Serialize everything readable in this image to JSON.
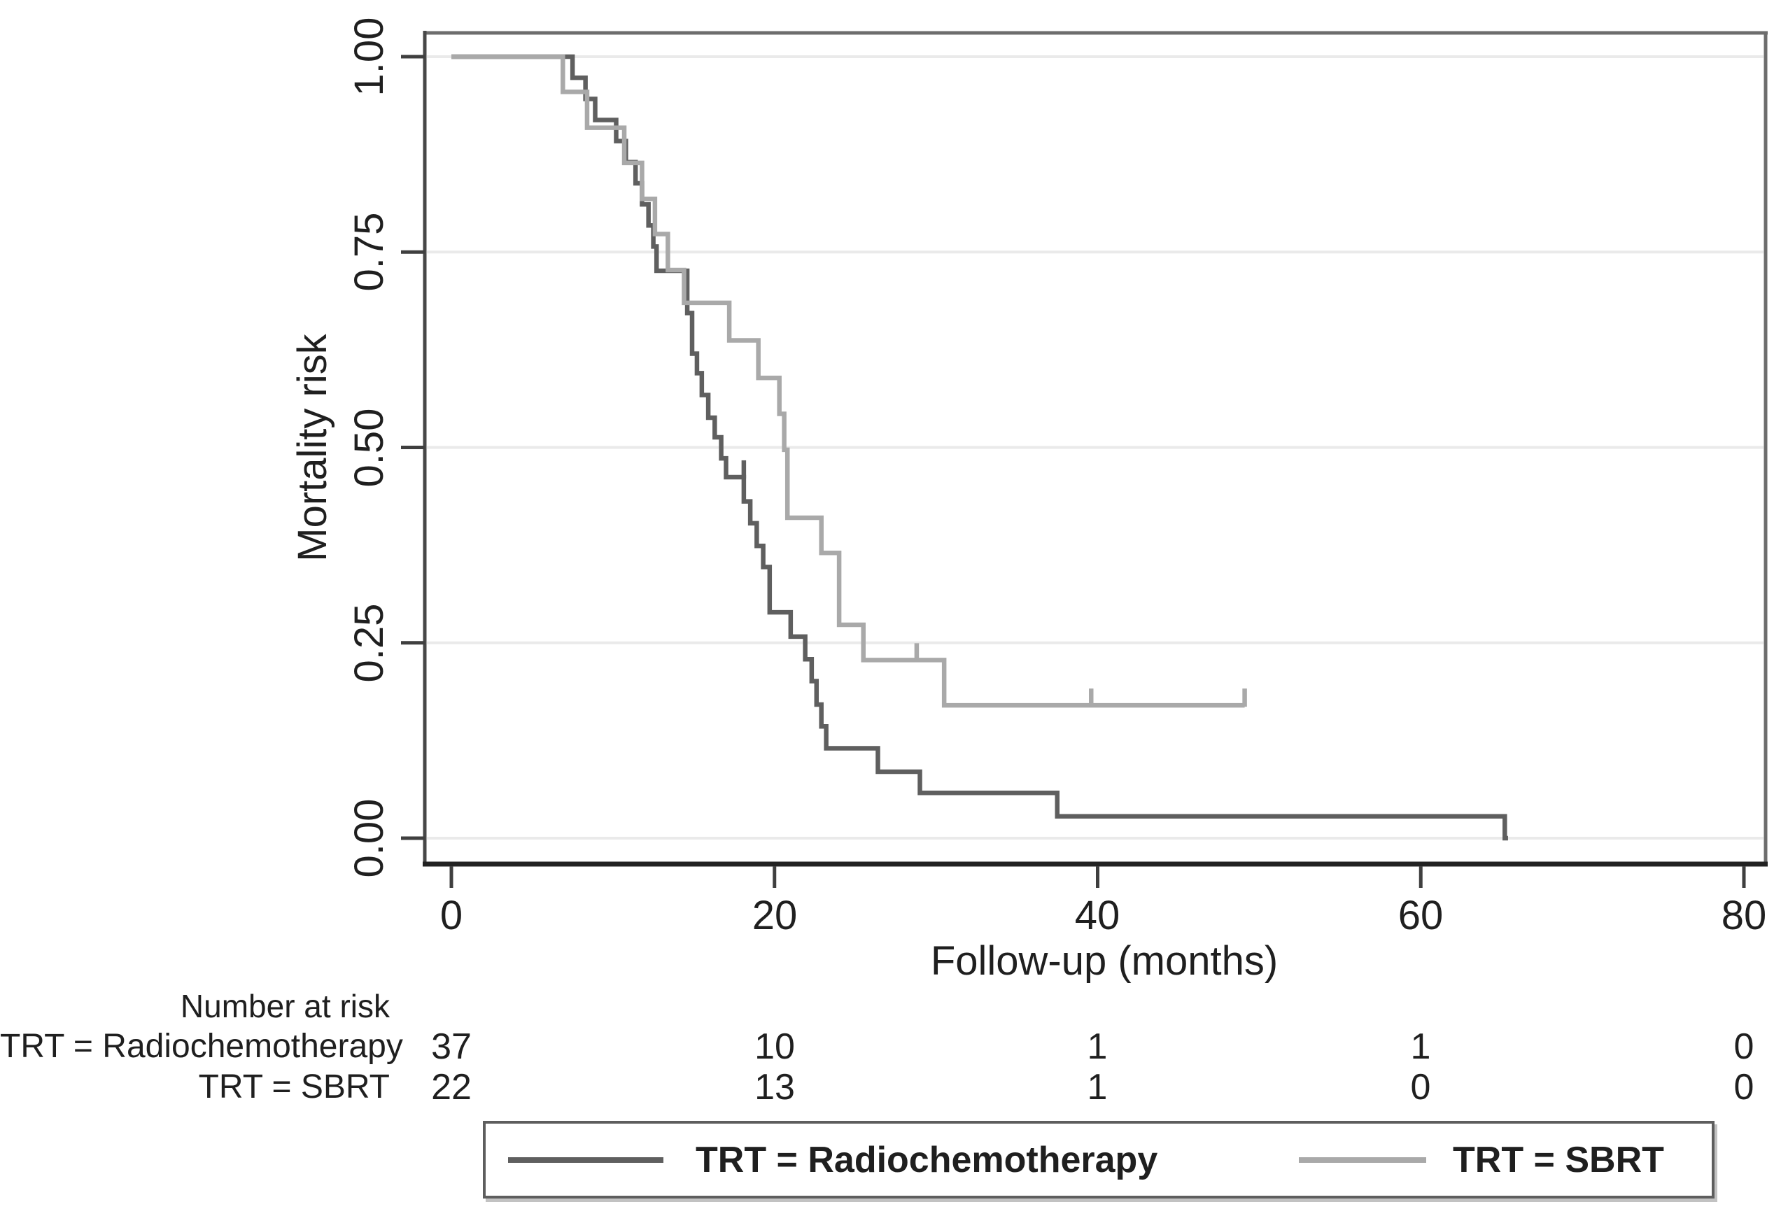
{
  "chart_data": {
    "type": "line",
    "subtype": "kaplan-meier-step-curve",
    "title": "",
    "xlabel": "Follow-up (months)",
    "ylabel": "Mortality risk",
    "xlim": [
      0,
      80
    ],
    "ylim": [
      0,
      1
    ],
    "grid": "horizontal-light-gray",
    "legend_position": "bottom-boxed",
    "xaxis": {
      "ticks": [
        {
          "value": 0,
          "label": "0"
        },
        {
          "value": 20,
          "label": "20"
        },
        {
          "value": 40,
          "label": "40"
        },
        {
          "value": 60,
          "label": "60"
        },
        {
          "value": 80,
          "label": "80"
        }
      ]
    },
    "yaxis": {
      "ticks": [
        {
          "value": 0.0,
          "label": "0.00"
        },
        {
          "value": 0.25,
          "label": "0.25"
        },
        {
          "value": 0.5,
          "label": "0.50"
        },
        {
          "value": 0.75,
          "label": "0.75"
        },
        {
          "value": 1.0,
          "label": "1.00"
        }
      ]
    },
    "series": [
      {
        "name": "TRT = Radiochemotherapy",
        "color": "#5f5f5f",
        "n_at_start": 37,
        "steps": [
          [
            0,
            1.0
          ],
          [
            7.5,
            0.973
          ],
          [
            8.3,
            0.946
          ],
          [
            8.9,
            0.919
          ],
          [
            10.2,
            0.892
          ],
          [
            10.8,
            0.865
          ],
          [
            11.4,
            0.838
          ],
          [
            11.8,
            0.811
          ],
          [
            12.2,
            0.784
          ],
          [
            12.5,
            0.757
          ],
          [
            12.7,
            0.726
          ],
          [
            14.6,
            0.672
          ],
          [
            14.9,
            0.62
          ],
          [
            15.2,
            0.595
          ],
          [
            15.5,
            0.567
          ],
          [
            15.9,
            0.538
          ],
          [
            16.3,
            0.513
          ],
          [
            16.7,
            0.486
          ],
          [
            17.0,
            0.462
          ],
          [
            18.1,
            0.431
          ],
          [
            18.5,
            0.403
          ],
          [
            18.9,
            0.374
          ],
          [
            19.3,
            0.347
          ],
          [
            19.7,
            0.289
          ],
          [
            21.0,
            0.258
          ],
          [
            21.9,
            0.229
          ],
          [
            22.3,
            0.201
          ],
          [
            22.6,
            0.171
          ],
          [
            22.9,
            0.143
          ],
          [
            23.2,
            0.115
          ],
          [
            26.4,
            0.085
          ],
          [
            29.0,
            0.058
          ],
          [
            37.5,
            0.028
          ],
          [
            65.2,
            0.0
          ]
        ],
        "end_t": 65.4,
        "censor_marks": [
          {
            "t": 18.1,
            "v": 0.462
          }
        ]
      },
      {
        "name": "TRT = SBRT",
        "color": "#a9a9a9",
        "n_at_start": 22,
        "steps": [
          [
            0,
            1.0
          ],
          [
            6.9,
            0.955
          ],
          [
            8.4,
            0.909
          ],
          [
            10.7,
            0.864
          ],
          [
            11.8,
            0.818
          ],
          [
            12.6,
            0.773
          ],
          [
            13.4,
            0.727
          ],
          [
            14.4,
            0.685
          ],
          [
            17.2,
            0.637
          ],
          [
            19.0,
            0.589
          ],
          [
            20.3,
            0.543
          ],
          [
            20.6,
            0.497
          ],
          [
            20.8,
            0.41
          ],
          [
            22.9,
            0.365
          ],
          [
            24.0,
            0.273
          ],
          [
            25.5,
            0.228
          ],
          [
            30.5,
            0.17
          ]
        ],
        "end_t": 49.1,
        "censor_marks": [
          {
            "t": 28.8,
            "v": 0.228
          },
          {
            "t": 39.6,
            "v": 0.17
          },
          {
            "t": 49.1,
            "v": 0.17
          }
        ]
      }
    ]
  },
  "risk_table": {
    "title": "Number at risk",
    "time_points": [
      "0",
      "20",
      "40",
      "60",
      "80"
    ],
    "rows": [
      {
        "label": "TRT = Radiochemotherapy",
        "values": [
          "37",
          "10",
          "1",
          "1",
          "0"
        ]
      },
      {
        "label": "TRT = SBRT",
        "values": [
          "22",
          "13",
          "1",
          "0",
          "0"
        ]
      }
    ]
  },
  "legend": {
    "items": [
      {
        "label": "TRT = Radiochemotherapy"
      },
      {
        "label": "TRT = SBRT"
      }
    ]
  }
}
